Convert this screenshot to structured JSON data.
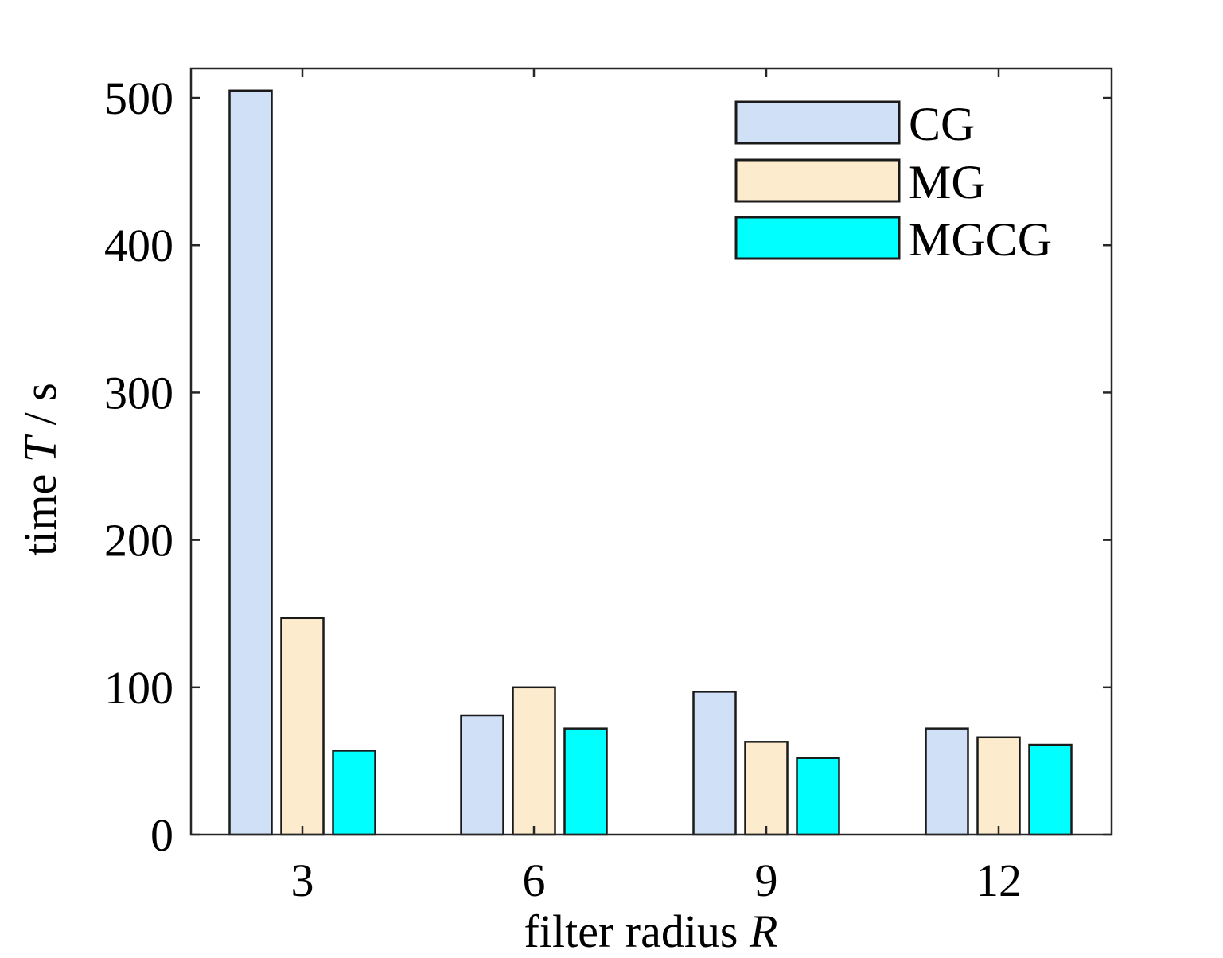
{
  "chart_data": {
    "type": "bar",
    "title": "",
    "categories": [
      "3",
      "6",
      "9",
      "12"
    ],
    "series": [
      {
        "name": "CG",
        "values": [
          505,
          81,
          97,
          72
        ],
        "color": "#cfe0f7"
      },
      {
        "name": "MG",
        "values": [
          147,
          100,
          63,
          66
        ],
        "color": "#fdebcd"
      },
      {
        "name": "MGCG",
        "values": [
          57,
          72,
          52,
          61
        ],
        "color": "#00ffff"
      }
    ],
    "xlabel": {
      "text": "filter radius ",
      "italic_var": "R"
    },
    "ylabel": {
      "text": "time ",
      "italic_var": "T",
      "suffix": " / s"
    },
    "ylim": [
      0,
      520
    ],
    "yticks": [
      0,
      100,
      200,
      300,
      400,
      500
    ],
    "grid": false,
    "legend": "top-right",
    "bar_edge_color": "#1a1a1a"
  }
}
